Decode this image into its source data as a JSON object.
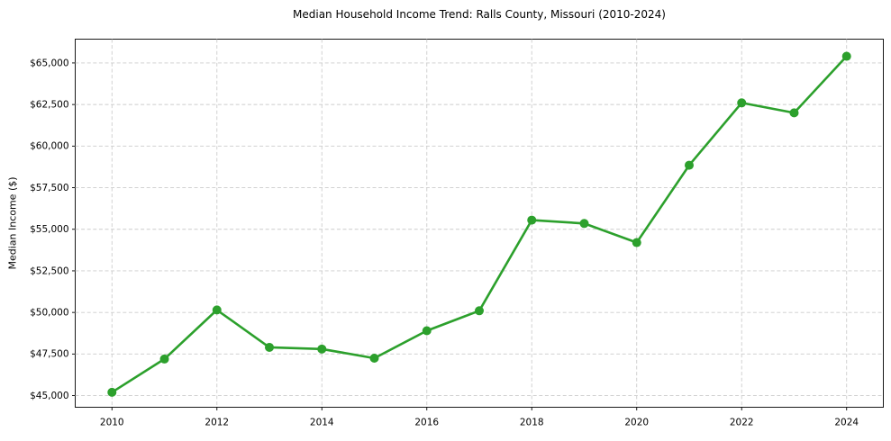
{
  "figure": {
    "title": "Median Household Income Trend: Ralls County, Missouri (2010-2024)"
  },
  "chart_data": {
    "type": "line",
    "title": "Median Household Income Trend: Ralls County, Missouri (2010-2024)",
    "xlabel": "",
    "ylabel": "Median Income ($)",
    "x": [
      2010,
      2011,
      2012,
      2013,
      2014,
      2015,
      2016,
      2017,
      2018,
      2019,
      2020,
      2021,
      2022,
      2023,
      2024
    ],
    "series": [
      {
        "name": "Median household income",
        "values": [
          45200,
          47200,
          50150,
          47900,
          47800,
          47250,
          48900,
          50100,
          55550,
          55350,
          54200,
          58850,
          62600,
          62000,
          65400
        ]
      }
    ],
    "xticks": [
      2010,
      2012,
      2014,
      2016,
      2018,
      2020,
      2022,
      2024
    ],
    "xtick_labels": [
      "2010",
      "2012",
      "2014",
      "2016",
      "2018",
      "2020",
      "2022",
      "2024"
    ],
    "yticks": [
      45000,
      47500,
      50000,
      52500,
      55000,
      57500,
      60000,
      62500,
      65000
    ],
    "ytick_labels": [
      "$45,000",
      "$47,500",
      "$50,000",
      "$52,500",
      "$55,000",
      "$57,500",
      "$60,000",
      "$62,500",
      "$65,000"
    ],
    "xlim": [
      2009.3,
      2024.7
    ],
    "ylim": [
      44300,
      66430
    ],
    "grid": true,
    "grid_style": "dashed",
    "legend": "none",
    "line_color": "#2ca02c",
    "marker": "circle",
    "marker_color": "#2ca02c",
    "grid_color": "#cccccc",
    "spine_color": "#000000",
    "background_color": "#ffffff"
  }
}
